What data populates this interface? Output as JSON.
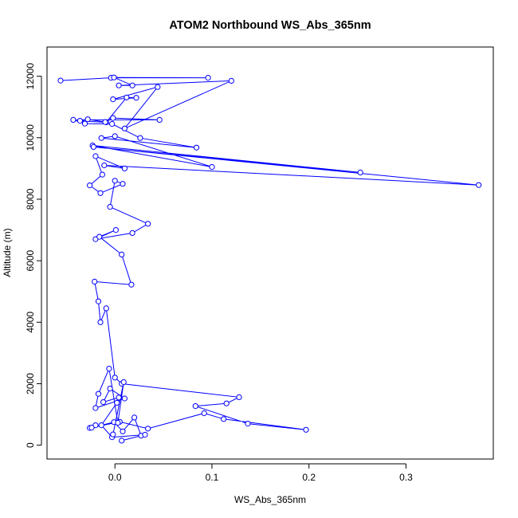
{
  "chart_data": {
    "type": "line",
    "title": "ATOM2 Northbound WS_Abs_365nm",
    "xlabel": "WS_Abs_365nm",
    "ylabel": "Altitude (m)",
    "xlim": [
      -0.07,
      0.39
    ],
    "ylim": [
      -450,
      12950
    ],
    "x_ticks": [
      "0.0",
      "0.1",
      "0.2",
      "0.3"
    ],
    "x_tick_values": [
      0,
      0.1,
      0.2,
      0.3
    ],
    "y_ticks": [
      "0",
      "2000",
      "4000",
      "6000",
      "8000",
      "10000",
      "12000"
    ],
    "y_tick_values": [
      0,
      2000,
      4000,
      6000,
      8000,
      10000,
      12000
    ],
    "grid": false,
    "color": "#0000ff",
    "series": [
      {
        "markers": "open-circle",
        "points": [
          [
            -0.056,
            11860
          ],
          [
            -0.004,
            11950
          ],
          [
            0.096,
            11950
          ],
          [
            -0.001,
            11960
          ],
          [
            0.018,
            11700
          ],
          [
            0.004,
            11700
          ],
          [
            0.12,
            11850
          ],
          [
            0.01,
            10300
          ],
          [
            0.044,
            11650
          ],
          [
            -0.002,
            11250
          ],
          [
            0.022,
            11300
          ],
          [
            0.012,
            11310
          ],
          [
            -0.009,
            10500
          ],
          [
            -0.036,
            10550
          ],
          [
            -0.028,
            10600
          ],
          [
            -0.01,
            10510
          ],
          [
            -0.002,
            10640
          ],
          [
            0.046,
            10580
          ],
          [
            -0.043,
            10580
          ],
          [
            -0.031,
            10460
          ],
          [
            -0.003,
            10450
          ],
          [
            0.026,
            9990
          ],
          [
            0.084,
            9680
          ],
          [
            -0.014,
            9990
          ],
          [
            0.0,
            10050
          ],
          [
            0.1,
            9050
          ],
          [
            -0.023,
            9750
          ],
          [
            0.253,
            8870
          ],
          [
            -0.022,
            9700
          ],
          [
            0.375,
            8460
          ],
          [
            -0.011,
            9100
          ],
          [
            0.01,
            9000
          ],
          [
            -0.02,
            9400
          ],
          [
            -0.013,
            8800
          ],
          [
            -0.026,
            8450
          ],
          [
            -0.015,
            8200
          ],
          [
            0.008,
            8500
          ],
          [
            0.0,
            8600
          ],
          [
            -0.005,
            7750
          ],
          [
            0.034,
            7200
          ],
          [
            0.018,
            6900
          ],
          [
            -0.02,
            6700
          ],
          [
            0.001,
            7000
          ],
          [
            -0.016,
            6780
          ],
          [
            0.007,
            6200
          ],
          [
            0.017,
            5220
          ],
          [
            -0.021,
            5320
          ],
          [
            -0.017,
            4680
          ],
          [
            -0.015,
            4000
          ],
          [
            -0.009,
            4450
          ],
          [
            0.0,
            2200
          ],
          [
            0.007,
            2000
          ],
          [
            0.128,
            1560
          ],
          [
            0.115,
            1360
          ],
          [
            0.083,
            1270
          ],
          [
            0.137,
            700
          ],
          [
            0.197,
            500
          ],
          [
            0.112,
            850
          ],
          [
            0.092,
            1040
          ],
          [
            0.034,
            540
          ],
          [
            0.005,
            760
          ],
          [
            -0.026,
            560
          ],
          [
            -0.02,
            650
          ],
          [
            -0.024,
            570
          ],
          [
            -0.001,
            750
          ],
          [
            0.008,
            450
          ],
          [
            0.02,
            900
          ],
          [
            0.027,
            310
          ],
          [
            0.007,
            150
          ],
          [
            0.031,
            340
          ],
          [
            -0.003,
            260
          ],
          [
            -0.014,
            650
          ],
          [
            0.002,
            1380
          ],
          [
            0.004,
            1550
          ],
          [
            -0.012,
            1400
          ],
          [
            -0.005,
            1840
          ],
          [
            0.01,
            1520
          ],
          [
            -0.02,
            1210
          ],
          [
            -0.017,
            1670
          ],
          [
            -0.006,
            2490
          ],
          [
            0.003,
            730
          ],
          [
            0.009,
            2050
          ],
          [
            -0.002,
            350
          ]
        ]
      }
    ]
  }
}
